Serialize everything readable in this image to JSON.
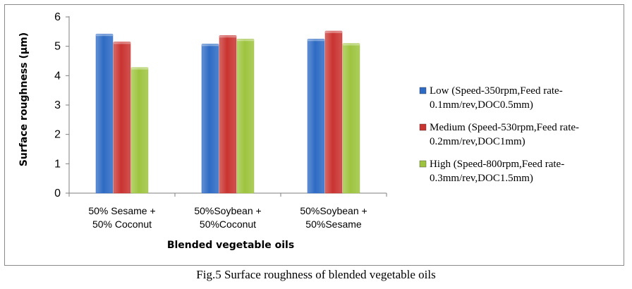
{
  "caption": "Fig.5 Surface roughness of blended vegetable oils",
  "chart_data": {
    "type": "bar",
    "categories": [
      [
        "50% Sesame +",
        "50% Coconut"
      ],
      [
        "50%Soybean +",
        "50%Coconut"
      ],
      [
        "50%Soybean +",
        "50%Sesame"
      ]
    ],
    "series": [
      {
        "name_lines": [
          "Low (Speed-350rpm,Feed rate-",
          "0.1mm/rev,DOC0.5mm)"
        ],
        "color": "#2e6bc4",
        "values": [
          5.42,
          5.08,
          5.25
        ]
      },
      {
        "name_lines": [
          "Medium (Speed-530rpm,Feed rate-",
          "0.2mm/rev,DOC1mm)"
        ],
        "color": "#c93431",
        "values": [
          5.15,
          5.37,
          5.52
        ]
      },
      {
        "name_lines": [
          "High (Speed-800rpm,Feed rate-",
          "0.3mm/rev,DOC1.5mm)"
        ],
        "color": "#9ec43f",
        "values": [
          4.28,
          5.25,
          5.1
        ]
      }
    ],
    "xlabel": "Blended  vegetable oils",
    "ylabel": "Surface roughness (µm)",
    "ylim": [
      0,
      6
    ],
    "yticks": [
      0,
      1,
      2,
      3,
      4,
      5,
      6
    ],
    "grid": false,
    "legend_position": "right"
  }
}
